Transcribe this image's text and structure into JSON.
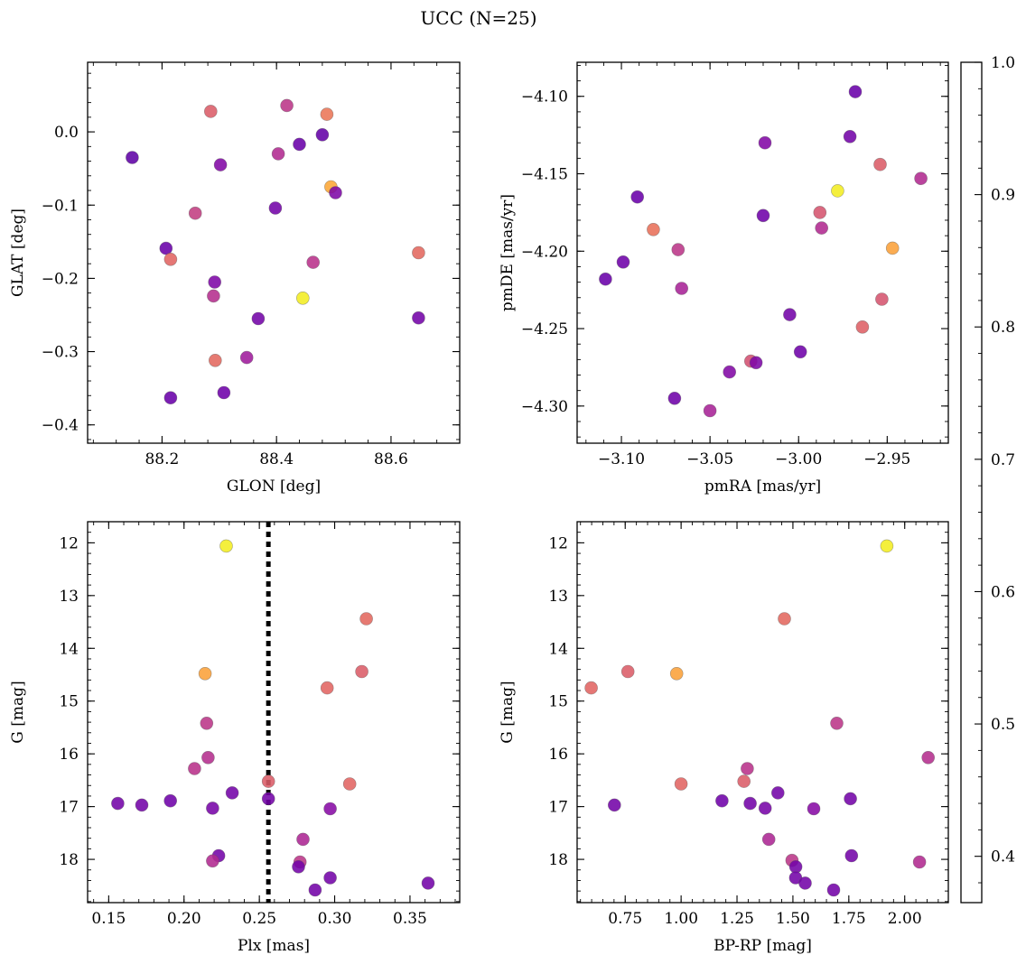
{
  "figure": {
    "title": "UCC (N=25)"
  },
  "colorbar": {
    "vmin": 0.365,
    "vmax": 1.0,
    "colormap": "plasma",
    "ticks": [
      0.4,
      0.5,
      0.6,
      0.7,
      0.8,
      0.9,
      1.0
    ],
    "tick_labels": [
      "0.4",
      "0.5",
      "0.6",
      "0.7",
      "0.8",
      "0.9",
      "1.0"
    ]
  },
  "chart_data": [
    {
      "type": "scatter",
      "title": "",
      "xlabel": "GLON [deg]",
      "ylabel": "GLAT [deg]",
      "xlim": [
        88.07,
        88.72
      ],
      "ylim": [
        -0.425,
        0.095
      ],
      "xticks": [
        88.2,
        88.4,
        88.6
      ],
      "xtick_labels": [
        "88.2",
        "88.4",
        "88.6"
      ],
      "yticks": [
        -0.4,
        -0.3,
        -0.2,
        -0.1,
        0.0
      ],
      "ytick_labels": [
        "−0.4",
        "−0.3",
        "−0.2",
        "−0.1",
        "0.0"
      ],
      "points": [
        {
          "x": 88.148,
          "y": -0.035,
          "c": 0.38
        },
        {
          "x": 88.285,
          "y": 0.028,
          "c": 0.68
        },
        {
          "x": 88.418,
          "y": 0.036,
          "c": 0.58
        },
        {
          "x": 88.488,
          "y": 0.024,
          "c": 0.74
        },
        {
          "x": 88.48,
          "y": -0.004,
          "c": 0.39
        },
        {
          "x": 88.44,
          "y": -0.017,
          "c": 0.4
        },
        {
          "x": 88.302,
          "y": -0.045,
          "c": 0.45
        },
        {
          "x": 88.403,
          "y": -0.03,
          "c": 0.55
        },
        {
          "x": 88.495,
          "y": -0.075,
          "c": 0.85
        },
        {
          "x": 88.503,
          "y": -0.083,
          "c": 0.44
        },
        {
          "x": 88.258,
          "y": -0.111,
          "c": 0.6
        },
        {
          "x": 88.398,
          "y": -0.104,
          "c": 0.42
        },
        {
          "x": 88.207,
          "y": -0.159,
          "c": 0.4
        },
        {
          "x": 88.215,
          "y": -0.174,
          "c": 0.7
        },
        {
          "x": 88.464,
          "y": -0.178,
          "c": 0.57
        },
        {
          "x": 88.648,
          "y": -0.165,
          "c": 0.71
        },
        {
          "x": 88.292,
          "y": -0.205,
          "c": 0.44
        },
        {
          "x": 88.29,
          "y": -0.224,
          "c": 0.56
        },
        {
          "x": 88.446,
          "y": -0.227,
          "c": 0.98
        },
        {
          "x": 88.368,
          "y": -0.255,
          "c": 0.42
        },
        {
          "x": 88.648,
          "y": -0.254,
          "c": 0.42
        },
        {
          "x": 88.293,
          "y": -0.312,
          "c": 0.71
        },
        {
          "x": 88.348,
          "y": -0.308,
          "c": 0.51
        },
        {
          "x": 88.308,
          "y": -0.356,
          "c": 0.41
        },
        {
          "x": 88.215,
          "y": -0.363,
          "c": 0.4
        }
      ]
    },
    {
      "type": "scatter",
      "title": "",
      "xlabel": "pmRA [mas/yr]",
      "ylabel": "pmDE [mas/yr]",
      "xlim": [
        -3.125,
        -2.9155
      ],
      "ylim": [
        -4.324,
        -4.078
      ],
      "xticks": [
        -3.1,
        -3.05,
        -3.0,
        -2.95
      ],
      "xtick_labels": [
        "−3.10",
        "−3.05",
        "−3.00",
        "−2.95"
      ],
      "yticks": [
        -4.3,
        -4.25,
        -4.2,
        -4.15,
        -4.1
      ],
      "ytick_labels": [
        "−4.30",
        "−4.25",
        "−4.20",
        "−4.15",
        "−4.10"
      ],
      "points": [
        {
          "x": -2.968,
          "y": -4.097,
          "c": 0.4
        },
        {
          "x": -2.971,
          "y": -4.126,
          "c": 0.42
        },
        {
          "x": -3.019,
          "y": -4.13,
          "c": 0.45
        },
        {
          "x": -2.954,
          "y": -4.144,
          "c": 0.68
        },
        {
          "x": -2.931,
          "y": -4.153,
          "c": 0.55
        },
        {
          "x": -2.978,
          "y": -4.161,
          "c": 0.98
        },
        {
          "x": -3.091,
          "y": -4.165,
          "c": 0.4
        },
        {
          "x": -2.988,
          "y": -4.175,
          "c": 0.66
        },
        {
          "x": -3.02,
          "y": -4.177,
          "c": 0.41
        },
        {
          "x": -3.082,
          "y": -4.186,
          "c": 0.73
        },
        {
          "x": -2.987,
          "y": -4.185,
          "c": 0.55
        },
        {
          "x": -3.068,
          "y": -4.199,
          "c": 0.58
        },
        {
          "x": -2.947,
          "y": -4.198,
          "c": 0.84
        },
        {
          "x": -3.099,
          "y": -4.207,
          "c": 0.41
        },
        {
          "x": -3.109,
          "y": -4.218,
          "c": 0.4
        },
        {
          "x": -3.066,
          "y": -4.224,
          "c": 0.53
        },
        {
          "x": -2.953,
          "y": -4.231,
          "c": 0.66
        },
        {
          "x": -3.005,
          "y": -4.241,
          "c": 0.42
        },
        {
          "x": -2.964,
          "y": -4.249,
          "c": 0.69
        },
        {
          "x": -2.999,
          "y": -4.265,
          "c": 0.41
        },
        {
          "x": -3.027,
          "y": -4.271,
          "c": 0.65
        },
        {
          "x": -3.024,
          "y": -4.272,
          "c": 0.44
        },
        {
          "x": -3.039,
          "y": -4.278,
          "c": 0.45
        },
        {
          "x": -3.07,
          "y": -4.295,
          "c": 0.41
        },
        {
          "x": -3.05,
          "y": -4.303,
          "c": 0.53
        }
      ]
    },
    {
      "type": "scatter",
      "title": "",
      "xlabel": "Plx [mas]",
      "ylabel": "G [mag]",
      "xlim": [
        0.136,
        0.383
      ],
      "ylim": [
        18.82,
        11.6
      ],
      "xticks": [
        0.15,
        0.2,
        0.25,
        0.3,
        0.35
      ],
      "xtick_labels": [
        "0.15",
        "0.20",
        "0.25",
        "0.30",
        "0.35"
      ],
      "yticks": [
        12,
        13,
        14,
        15,
        16,
        17,
        18
      ],
      "ytick_labels": [
        "12",
        "13",
        "14",
        "15",
        "16",
        "17",
        "18"
      ],
      "vline": 0.256,
      "points": [
        {
          "x": 0.228,
          "y": 12.06,
          "c": 0.98
        },
        {
          "x": 0.321,
          "y": 13.44,
          "c": 0.71
        },
        {
          "x": 0.214,
          "y": 14.48,
          "c": 0.84
        },
        {
          "x": 0.318,
          "y": 14.44,
          "c": 0.68
        },
        {
          "x": 0.295,
          "y": 14.75,
          "c": 0.7
        },
        {
          "x": 0.215,
          "y": 15.42,
          "c": 0.58
        },
        {
          "x": 0.216,
          "y": 16.07,
          "c": 0.56
        },
        {
          "x": 0.207,
          "y": 16.28,
          "c": 0.57
        },
        {
          "x": 0.256,
          "y": 16.52,
          "c": 0.68
        },
        {
          "x": 0.31,
          "y": 16.57,
          "c": 0.7
        },
        {
          "x": 0.232,
          "y": 16.74,
          "c": 0.42
        },
        {
          "x": 0.256,
          "y": 16.85,
          "c": 0.42
        },
        {
          "x": 0.191,
          "y": 16.89,
          "c": 0.41
        },
        {
          "x": 0.156,
          "y": 16.94,
          "c": 0.42
        },
        {
          "x": 0.172,
          "y": 16.97,
          "c": 0.42
        },
        {
          "x": 0.219,
          "y": 17.03,
          "c": 0.43
        },
        {
          "x": 0.297,
          "y": 17.04,
          "c": 0.46
        },
        {
          "x": 0.279,
          "y": 17.62,
          "c": 0.54
        },
        {
          "x": 0.223,
          "y": 17.93,
          "c": 0.42
        },
        {
          "x": 0.219,
          "y": 18.03,
          "c": 0.55
        },
        {
          "x": 0.277,
          "y": 18.05,
          "c": 0.58
        },
        {
          "x": 0.276,
          "y": 18.14,
          "c": 0.42
        },
        {
          "x": 0.297,
          "y": 18.35,
          "c": 0.42
        },
        {
          "x": 0.362,
          "y": 18.45,
          "c": 0.42
        },
        {
          "x": 0.287,
          "y": 18.58,
          "c": 0.42
        }
      ]
    },
    {
      "type": "scatter",
      "title": "",
      "xlabel": "BP-RP [mag]",
      "ylabel": "G [mag]",
      "xlim": [
        0.535,
        2.195
      ],
      "ylim": [
        18.82,
        11.6
      ],
      "xticks": [
        0.75,
        1.0,
        1.25,
        1.5,
        1.75,
        2.0
      ],
      "xtick_labels": [
        "0.75",
        "1.00",
        "1.25",
        "1.50",
        "1.75",
        "2.00"
      ],
      "yticks": [
        12,
        13,
        14,
        15,
        16,
        17,
        18
      ],
      "ytick_labels": [
        "12",
        "13",
        "14",
        "15",
        "16",
        "17",
        "18"
      ],
      "points": [
        {
          "x": 1.92,
          "y": 12.06,
          "c": 0.98
        },
        {
          "x": 1.462,
          "y": 13.44,
          "c": 0.71
        },
        {
          "x": 0.98,
          "y": 14.48,
          "c": 0.84
        },
        {
          "x": 0.762,
          "y": 14.44,
          "c": 0.68
        },
        {
          "x": 0.598,
          "y": 14.75,
          "c": 0.7
        },
        {
          "x": 1.696,
          "y": 15.42,
          "c": 0.58
        },
        {
          "x": 2.105,
          "y": 16.07,
          "c": 0.56
        },
        {
          "x": 1.296,
          "y": 16.28,
          "c": 0.57
        },
        {
          "x": 1.281,
          "y": 16.52,
          "c": 0.68
        },
        {
          "x": 1.0,
          "y": 16.57,
          "c": 0.7
        },
        {
          "x": 1.433,
          "y": 16.74,
          "c": 0.42
        },
        {
          "x": 1.757,
          "y": 16.85,
          "c": 0.42
        },
        {
          "x": 1.183,
          "y": 16.89,
          "c": 0.41
        },
        {
          "x": 1.309,
          "y": 16.94,
          "c": 0.42
        },
        {
          "x": 0.702,
          "y": 16.97,
          "c": 0.42
        },
        {
          "x": 1.376,
          "y": 17.03,
          "c": 0.43
        },
        {
          "x": 1.593,
          "y": 17.04,
          "c": 0.46
        },
        {
          "x": 1.392,
          "y": 17.62,
          "c": 0.54
        },
        {
          "x": 1.762,
          "y": 17.93,
          "c": 0.42
        },
        {
          "x": 2.066,
          "y": 18.05,
          "c": 0.55
        },
        {
          "x": 1.496,
          "y": 18.02,
          "c": 0.58
        },
        {
          "x": 1.513,
          "y": 18.14,
          "c": 0.42
        },
        {
          "x": 1.512,
          "y": 18.35,
          "c": 0.42
        },
        {
          "x": 1.555,
          "y": 18.45,
          "c": 0.42
        },
        {
          "x": 1.682,
          "y": 18.58,
          "c": 0.42
        }
      ]
    }
  ]
}
